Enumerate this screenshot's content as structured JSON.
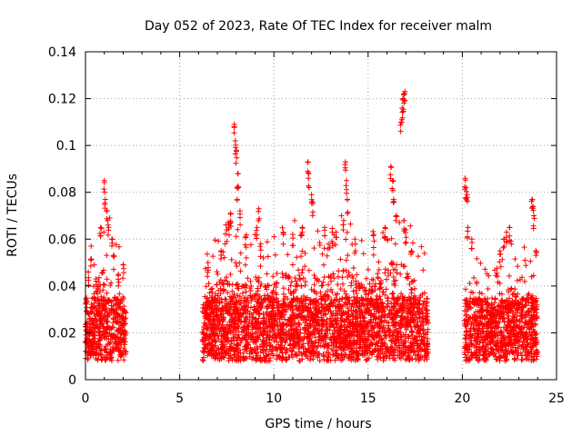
{
  "chart_data": {
    "type": "scatter",
    "title": "Day 052 of 2023, Rate Of TEC Index for receiver malm",
    "xlabel": "GPS time / hours",
    "ylabel": "ROTI / TECUs",
    "xlim": [
      0,
      25
    ],
    "ylim": [
      0,
      0.14
    ],
    "x_ticks": [
      "0",
      "5",
      "10",
      "15",
      "20",
      "25"
    ],
    "y_ticks": [
      "0",
      "0.02",
      "0.04",
      "0.06",
      "0.08",
      "0.1",
      "0.12",
      "0.14"
    ],
    "grid": true,
    "marker": "+",
    "color": "#ff0000",
    "segments": [
      {
        "x": [
          0.0,
          2.15
        ],
        "base": [
          0.005,
          0.02
        ],
        "envelope": [
          [
            0.0,
            0.03
          ],
          [
            0.3,
            0.045
          ],
          [
            0.6,
            0.05
          ],
          [
            0.9,
            0.065
          ],
          [
            1.1,
            0.07
          ],
          [
            1.3,
            0.06
          ],
          [
            1.6,
            0.05
          ],
          [
            2.0,
            0.045
          ],
          [
            2.15,
            0.035
          ]
        ]
      },
      {
        "x": [
          6.2,
          18.2
        ],
        "base": [
          0.005,
          0.02
        ],
        "envelope": [
          [
            6.2,
            0.045
          ],
          [
            6.8,
            0.05
          ],
          [
            7.3,
            0.055
          ],
          [
            7.8,
            0.06
          ],
          [
            8.3,
            0.05
          ],
          [
            8.8,
            0.06
          ],
          [
            9.3,
            0.06
          ],
          [
            9.8,
            0.05
          ],
          [
            10.3,
            0.055
          ],
          [
            10.8,
            0.06
          ],
          [
            11.3,
            0.06
          ],
          [
            11.8,
            0.06
          ],
          [
            12.3,
            0.055
          ],
          [
            12.8,
            0.055
          ],
          [
            13.3,
            0.06
          ],
          [
            13.8,
            0.06
          ],
          [
            14.3,
            0.055
          ],
          [
            14.8,
            0.05
          ],
          [
            15.3,
            0.055
          ],
          [
            15.8,
            0.06
          ],
          [
            16.3,
            0.065
          ],
          [
            16.8,
            0.065
          ],
          [
            17.3,
            0.055
          ],
          [
            17.8,
            0.05
          ],
          [
            18.2,
            0.045
          ]
        ]
      },
      {
        "x": [
          20.1,
          24.0
        ],
        "base": [
          0.005,
          0.02
        ],
        "envelope": [
          [
            20.1,
            0.04
          ],
          [
            20.5,
            0.05
          ],
          [
            21.0,
            0.04
          ],
          [
            21.5,
            0.035
          ],
          [
            22.0,
            0.04
          ],
          [
            22.5,
            0.05
          ],
          [
            23.0,
            0.045
          ],
          [
            23.5,
            0.05
          ],
          [
            24.0,
            0.04
          ]
        ]
      }
    ],
    "peaks": [
      {
        "x": 0.15,
        "y": 0.046
      },
      {
        "x": 0.3,
        "y": 0.057
      },
      {
        "x": 0.55,
        "y": 0.043
      },
      {
        "x": 0.8,
        "y": 0.065
      },
      {
        "x": 1.0,
        "y": 0.085
      },
      {
        "x": 1.05,
        "y": 0.077
      },
      {
        "x": 1.15,
        "y": 0.072
      },
      {
        "x": 1.2,
        "y": 0.066
      },
      {
        "x": 1.4,
        "y": 0.06
      },
      {
        "x": 1.5,
        "y": 0.053
      },
      {
        "x": 1.75,
        "y": 0.045
      },
      {
        "x": 2.0,
        "y": 0.049
      },
      {
        "x": 6.5,
        "y": 0.05
      },
      {
        "x": 7.2,
        "y": 0.055
      },
      {
        "x": 7.6,
        "y": 0.066
      },
      {
        "x": 7.7,
        "y": 0.071
      },
      {
        "x": 7.9,
        "y": 0.109
      },
      {
        "x": 7.95,
        "y": 0.102
      },
      {
        "x": 8.0,
        "y": 0.098
      },
      {
        "x": 8.1,
        "y": 0.088
      },
      {
        "x": 8.05,
        "y": 0.082
      },
      {
        "x": 8.2,
        "y": 0.072
      },
      {
        "x": 8.5,
        "y": 0.061
      },
      {
        "x": 9.1,
        "y": 0.065
      },
      {
        "x": 9.2,
        "y": 0.073
      },
      {
        "x": 9.3,
        "y": 0.058
      },
      {
        "x": 10.5,
        "y": 0.063
      },
      {
        "x": 11.0,
        "y": 0.062
      },
      {
        "x": 11.5,
        "y": 0.065
      },
      {
        "x": 11.8,
        "y": 0.093
      },
      {
        "x": 11.85,
        "y": 0.088
      },
      {
        "x": 12.0,
        "y": 0.079
      },
      {
        "x": 12.05,
        "y": 0.076
      },
      {
        "x": 12.7,
        "y": 0.065
      },
      {
        "x": 13.1,
        "y": 0.063
      },
      {
        "x": 13.3,
        "y": 0.063
      },
      {
        "x": 13.7,
        "y": 0.068
      },
      {
        "x": 13.8,
        "y": 0.093
      },
      {
        "x": 13.85,
        "y": 0.085
      },
      {
        "x": 13.9,
        "y": 0.077
      },
      {
        "x": 14.3,
        "y": 0.06
      },
      {
        "x": 15.3,
        "y": 0.062
      },
      {
        "x": 15.9,
        "y": 0.065
      },
      {
        "x": 16.2,
        "y": 0.091
      },
      {
        "x": 16.3,
        "y": 0.085
      },
      {
        "x": 16.35,
        "y": 0.077
      },
      {
        "x": 16.5,
        "y": 0.07
      },
      {
        "x": 16.75,
        "y": 0.11
      },
      {
        "x": 16.8,
        "y": 0.116
      },
      {
        "x": 16.85,
        "y": 0.12
      },
      {
        "x": 16.9,
        "y": 0.122
      },
      {
        "x": 16.95,
        "y": 0.123
      },
      {
        "x": 16.9,
        "y": 0.068
      },
      {
        "x": 17.0,
        "y": 0.064
      },
      {
        "x": 17.3,
        "y": 0.055
      },
      {
        "x": 20.15,
        "y": 0.086
      },
      {
        "x": 20.2,
        "y": 0.082
      },
      {
        "x": 20.25,
        "y": 0.079
      },
      {
        "x": 20.3,
        "y": 0.065
      },
      {
        "x": 20.5,
        "y": 0.06
      },
      {
        "x": 22.0,
        "y": 0.055
      },
      {
        "x": 22.2,
        "y": 0.06
      },
      {
        "x": 22.35,
        "y": 0.063
      },
      {
        "x": 22.5,
        "y": 0.065
      },
      {
        "x": 23.7,
        "y": 0.077
      },
      {
        "x": 23.75,
        "y": 0.074
      },
      {
        "x": 23.8,
        "y": 0.07
      },
      {
        "x": 23.9,
        "y": 0.055
      }
    ]
  }
}
